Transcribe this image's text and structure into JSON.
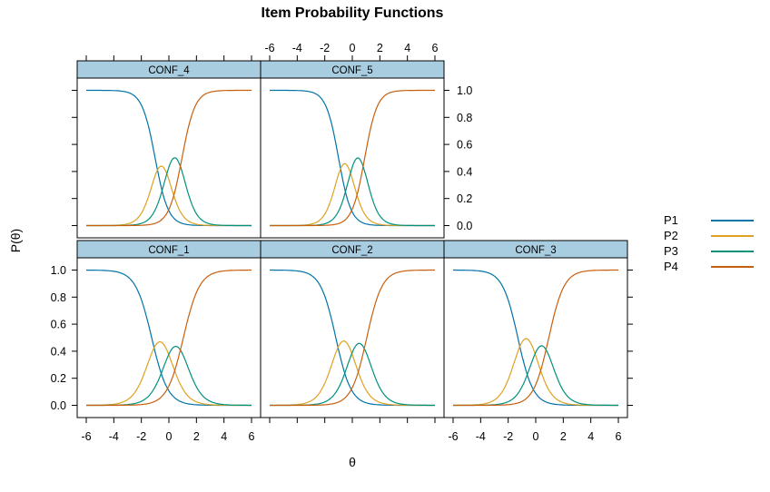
{
  "chart_data": {
    "type": "line",
    "title": "Item Probability Functions",
    "xlabel": "θ",
    "ylabel": "P(θ)",
    "xlim": [
      -6.7,
      6.7
    ],
    "ylim": [
      -0.04,
      1.04
    ],
    "x_ticks": [
      -6,
      -4,
      -2,
      0,
      2,
      4,
      6
    ],
    "x_tick_labels": [
      "-6",
      "-4",
      "-2",
      "0",
      "2",
      "4",
      "6"
    ],
    "y_ticks": [
      0.0,
      0.2,
      0.4,
      0.6,
      0.8,
      1.0
    ],
    "y_tick_labels": [
      "0.0",
      "0.2",
      "0.4",
      "0.6",
      "0.8",
      "1.0"
    ],
    "grid": false,
    "legend_position": "right",
    "axis_alternating": "bottom labels on columns 1 and 3, top labels on column 2, left labels on bottom row, right labels on top row; unlabeled outer edges show ticks only",
    "series_names": [
      "P1",
      "P2",
      "P3",
      "P4"
    ],
    "series_colors": [
      "#0073A8",
      "#DFA121",
      "#00917D",
      "#C85F0F"
    ],
    "theta_range": [
      -6,
      6
    ],
    "model": "graded response curves: L_k = 1/(1+exp(-a*(theta-b_k))); P1 = 1-L_1, P2 = L_1-L_2, P3 = L_2-L_3, P4 = L_3",
    "strip_fill": "#A8CCE0",
    "panels": [
      {
        "label": "CONF_4",
        "row": 0,
        "col": 0,
        "a": 2.1,
        "b": [
          -1.0,
          -0.1,
          0.95
        ]
      },
      {
        "label": "CONF_5",
        "row": 0,
        "col": 1,
        "a": 2.2,
        "b": [
          -1.0,
          -0.1,
          0.9
        ]
      },
      {
        "label": "CONF_1",
        "row": 1,
        "col": 0,
        "a": 1.7,
        "b": [
          -1.25,
          -0.05,
          1.05
        ]
      },
      {
        "label": "CONF_2",
        "row": 1,
        "col": 1,
        "a": 1.8,
        "b": [
          -1.2,
          -0.05,
          1.05
        ]
      },
      {
        "label": "CONF_3",
        "row": 1,
        "col": 2,
        "a": 1.8,
        "b": [
          -1.3,
          -0.1,
          0.95
        ]
      }
    ]
  },
  "legend": {
    "entries": [
      {
        "label": "P1",
        "color": "#0073A8"
      },
      {
        "label": "P2",
        "color": "#DFA121"
      },
      {
        "label": "P3",
        "color": "#00917D"
      },
      {
        "label": "P4",
        "color": "#C85F0F"
      }
    ]
  }
}
